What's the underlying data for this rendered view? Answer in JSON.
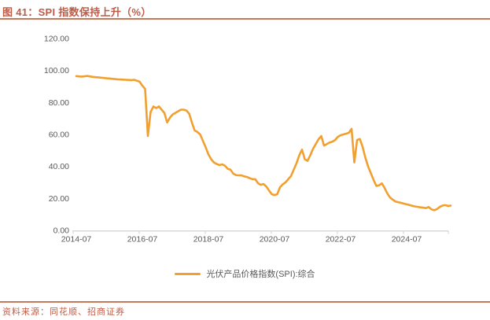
{
  "figure": {
    "title": "图 41：SPI 指数保持上升（%）",
    "source": "资料来源：同花顺、招商证券"
  },
  "colors": {
    "accent_text": "#bf5b45",
    "rule": "#c5795b",
    "line": "#f1a02f",
    "axis_text": "#595959",
    "axis_line": "#d9d9d9"
  },
  "chart_data": {
    "type": "line",
    "title": "图 41：SPI 指数保持上升（%）",
    "xlabel": "",
    "ylabel": "",
    "ylim": [
      0,
      120
    ],
    "grid": false,
    "legend_position": "bottom",
    "y_ticks": [
      "120.00",
      "100.00",
      "80.00",
      "60.00",
      "40.00",
      "20.00",
      "0.00"
    ],
    "x_tick_labels": [
      "2014-07",
      "2016-07",
      "2018-07",
      "2020-07",
      "2022-07",
      "2024-07"
    ],
    "x_tick_month_index": [
      0,
      24,
      48,
      72,
      96,
      120
    ],
    "series": [
      {
        "name": "光伏产品价格指数(SPI):综合",
        "start_month": "2014-07",
        "frequency": "monthly",
        "values": [
          96.5,
          96.3,
          96.2,
          96.4,
          96.6,
          96.3,
          96.0,
          95.8,
          95.7,
          95.5,
          95.3,
          95.1,
          95.0,
          94.8,
          94.6,
          94.5,
          94.4,
          94.3,
          94.2,
          94.1,
          94.0,
          94.2,
          93.6,
          93.0,
          90.5,
          88.5,
          59.0,
          74.0,
          77.5,
          76.5,
          77.5,
          75.5,
          73.5,
          67.5,
          70.5,
          72.5,
          73.5,
          74.5,
          75.5,
          75.5,
          75.0,
          73.0,
          67.5,
          62.5,
          61.5,
          60.0,
          56.0,
          52.0,
          47.5,
          44.5,
          42.5,
          41.5,
          40.8,
          41.3,
          40.5,
          38.5,
          38.0,
          35.5,
          34.6,
          34.4,
          34.4,
          33.8,
          33.4,
          32.6,
          32.0,
          32.0,
          29.5,
          28.5,
          29.0,
          27.5,
          25.0,
          22.6,
          22.1,
          22.6,
          27.0,
          28.8,
          30.0,
          32.0,
          34.0,
          38.0,
          42.0,
          47.0,
          50.5,
          44.5,
          43.5,
          47.0,
          51.0,
          54.0,
          57.0,
          59.0,
          53.0,
          54.0,
          55.0,
          55.5,
          56.5,
          58.5,
          59.5,
          60.0,
          60.5,
          61.0,
          63.5,
          42.5,
          56.5,
          57.2,
          52.3,
          45.5,
          40.0,
          35.8,
          31.5,
          27.8,
          28.2,
          29.4,
          26.5,
          23.0,
          20.5,
          19.2,
          18.0,
          17.6,
          17.2,
          16.7,
          16.3,
          15.9,
          15.4,
          15.0,
          14.7,
          14.4,
          14.2,
          13.9,
          14.6,
          13.2,
          12.6,
          13.3,
          14.6,
          15.5,
          15.8,
          15.3,
          15.5
        ]
      }
    ]
  }
}
